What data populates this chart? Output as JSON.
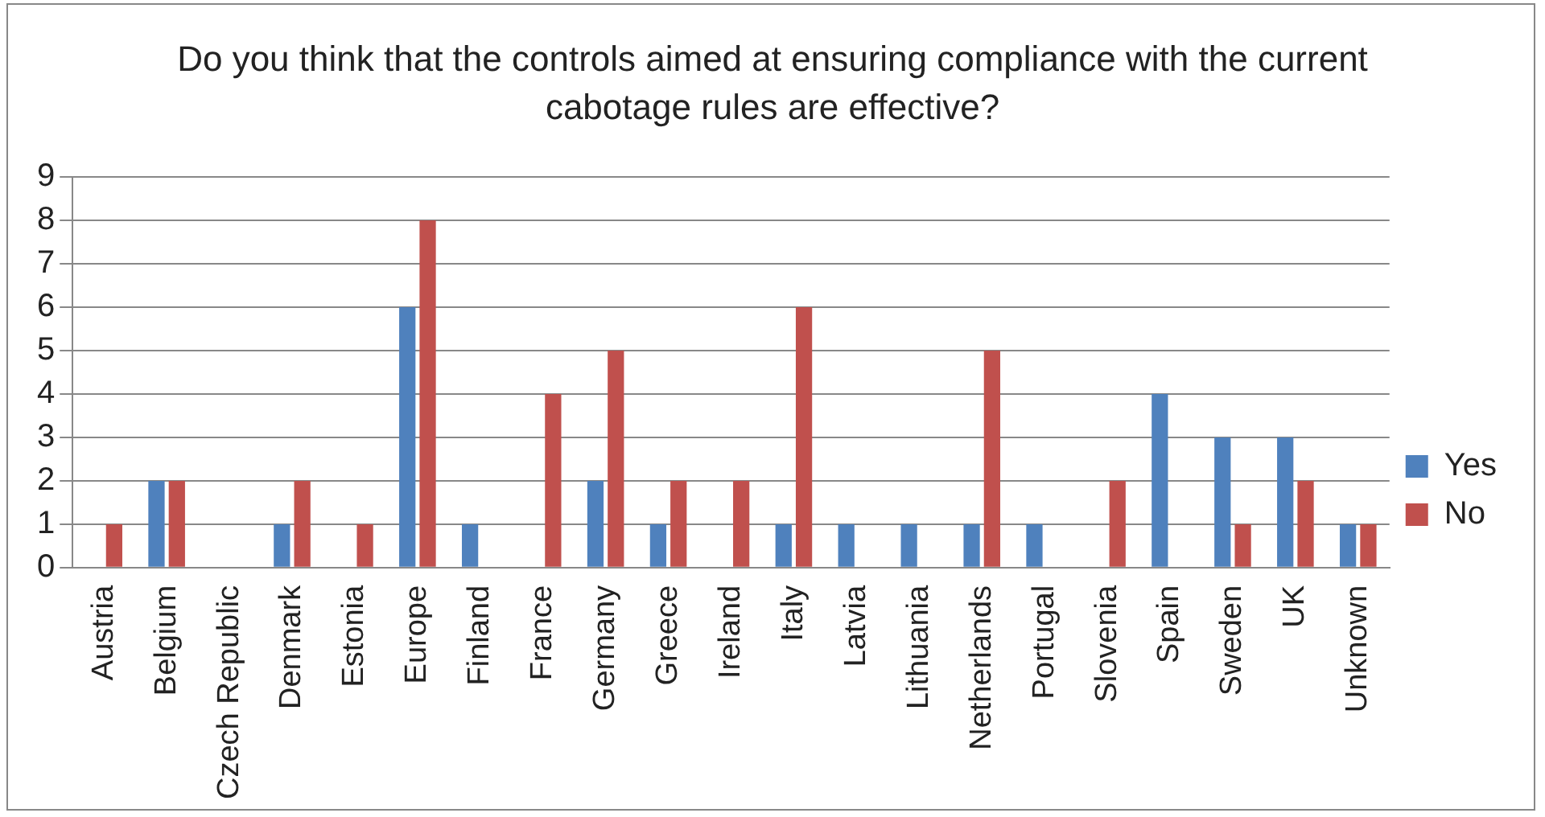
{
  "chart_data": {
    "type": "bar",
    "title": "Do you think that the controls aimed at ensuring compliance with the current cabotage rules are effective?",
    "categories": [
      "Austria",
      "Belgium",
      "Czech Republic",
      "Denmark",
      "Estonia",
      "Europe",
      "Finland",
      "France",
      "Germany",
      "Greece",
      "Ireland",
      "Italy",
      "Latvia",
      "Lithuania",
      "Netherlands",
      "Portugal",
      "Slovenia",
      "Spain",
      "Sweden",
      "UK",
      "Unknown"
    ],
    "series": [
      {
        "name": "Yes",
        "color": "#4f81bd",
        "values": [
          0,
          2,
          0,
          1,
          0,
          6,
          1,
          0,
          2,
          1,
          0,
          1,
          1,
          1,
          1,
          1,
          0,
          4,
          3,
          3,
          1
        ]
      },
      {
        "name": "No",
        "color": "#c0504d",
        "values": [
          1,
          2,
          0,
          2,
          1,
          8,
          0,
          4,
          5,
          2,
          2,
          6,
          0,
          0,
          5,
          0,
          2,
          0,
          1,
          2,
          1
        ]
      }
    ],
    "ylim": [
      0,
      9
    ],
    "yticks": [
      0,
      1,
      2,
      3,
      4,
      5,
      6,
      7,
      8,
      9
    ],
    "grid": "y",
    "legend": "right"
  }
}
